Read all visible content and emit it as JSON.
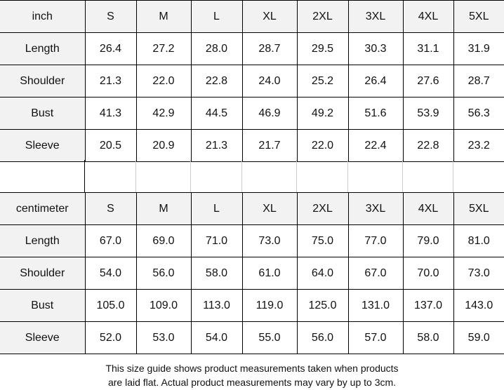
{
  "sizes": [
    "S",
    "M",
    "L",
    "XL",
    "2XL",
    "3XL",
    "4XL",
    "5XL"
  ],
  "inch": {
    "unit_label": "inch",
    "rows": [
      {
        "label": "Length",
        "values": [
          "26.4",
          "27.2",
          "28.0",
          "28.7",
          "29.5",
          "30.3",
          "31.1",
          "31.9"
        ]
      },
      {
        "label": "Shoulder",
        "values": [
          "21.3",
          "22.0",
          "22.8",
          "24.0",
          "25.2",
          "26.4",
          "27.6",
          "28.7"
        ]
      },
      {
        "label": "Bust",
        "values": [
          "41.3",
          "42.9",
          "44.5",
          "46.9",
          "49.2",
          "51.6",
          "53.9",
          "56.3"
        ]
      },
      {
        "label": "Sleeve",
        "values": [
          "20.5",
          "20.9",
          "21.3",
          "21.7",
          "22.0",
          "22.4",
          "22.8",
          "23.2"
        ]
      }
    ]
  },
  "centimeter": {
    "unit_label": "centimeter",
    "rows": [
      {
        "label": "Length",
        "values": [
          "67.0",
          "69.0",
          "71.0",
          "73.0",
          "75.0",
          "77.0",
          "79.0",
          "81.0"
        ]
      },
      {
        "label": "Shoulder",
        "values": [
          "54.0",
          "56.0",
          "58.0",
          "61.0",
          "64.0",
          "67.0",
          "70.0",
          "73.0"
        ]
      },
      {
        "label": "Bust",
        "values": [
          "105.0",
          "109.0",
          "113.0",
          "119.0",
          "125.0",
          "131.0",
          "137.0",
          "143.0"
        ]
      },
      {
        "label": "Sleeve",
        "values": [
          "52.0",
          "53.0",
          "54.0",
          "55.0",
          "56.0",
          "57.0",
          "58.0",
          "59.0"
        ]
      }
    ]
  },
  "note": {
    "line1": "This size guide shows product measurements taken when products",
    "line2": "are laid flat. Actual product measurements may vary by up to 3cm."
  },
  "colors": {
    "header_bg": "#f2f2f2",
    "border": "#000000"
  }
}
